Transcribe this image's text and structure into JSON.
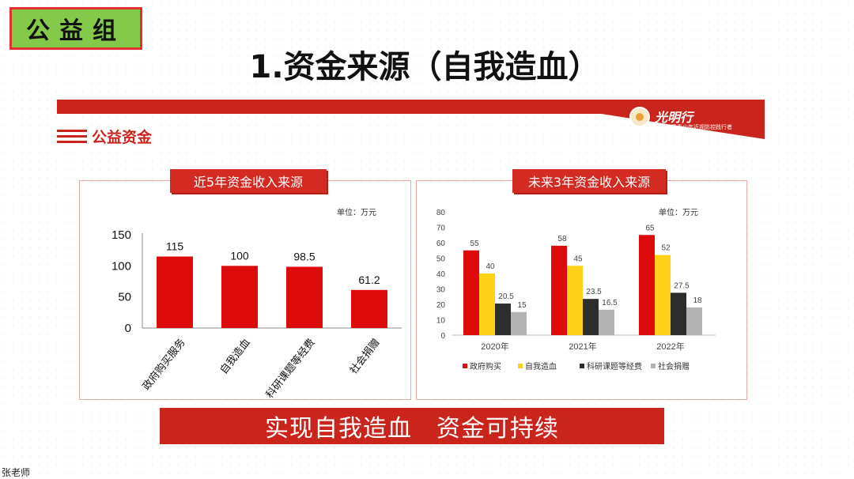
{
  "header": {
    "group_label": "公益组",
    "title": "1.资金来源（自我造血）"
  },
  "logo": {
    "name": "光明行",
    "subtitle": "中国儿童青少年近视防控践行者"
  },
  "section": {
    "label": "公益资金"
  },
  "colors": {
    "brand_red": "#c9251d",
    "bar_red": "#dd0b0b",
    "bar_yellow": "#ffd21a",
    "bar_dark": "#2d2d2d",
    "bar_gray": "#b3b3b3",
    "badge_green": "#84c94a"
  },
  "left_panel": {
    "tab": "近5年资金收入来源",
    "unit": "单位：万元"
  },
  "right_panel": {
    "tab": "未来3年资金收入来源",
    "unit": "单位：万元"
  },
  "chart_data": [
    {
      "type": "bar",
      "title": "近5年资金收入来源",
      "unit": "单位：万元",
      "categories": [
        "政府购买服务",
        "自我造血",
        "科研课题等经费",
        "社会捐赠"
      ],
      "values": [
        115,
        100,
        98.5,
        61.2
      ],
      "data_labels": [
        "115",
        "100",
        "98.5",
        "61.2"
      ],
      "yticks": [
        0,
        50,
        100,
        150
      ],
      "ylim": [
        0,
        150
      ],
      "grid": false
    },
    {
      "type": "bar",
      "title": "未来3年资金收入来源",
      "unit": "单位：万元",
      "categories": [
        "2020年",
        "2021年",
        "2022年"
      ],
      "series": [
        {
          "name": "政府购买",
          "values": [
            55,
            58,
            65
          ],
          "labels": [
            "55",
            "58",
            "65"
          ]
        },
        {
          "name": "自我造血",
          "values": [
            40,
            45,
            52
          ],
          "labels": [
            "40",
            "45",
            "52"
          ]
        },
        {
          "name": "科研课题等经费",
          "values": [
            20.5,
            23.5,
            27.5
          ],
          "labels": [
            "20.5",
            "23.5",
            "27.5"
          ]
        },
        {
          "name": "社会捐赠",
          "values": [
            15,
            16.5,
            18
          ],
          "labels": [
            "15",
            "16.5",
            "18"
          ]
        }
      ],
      "yticks": [
        0,
        10,
        20,
        30,
        40,
        50,
        60,
        70,
        80
      ],
      "ylim": [
        0,
        80
      ],
      "legend": "bottom",
      "grid": false
    }
  ],
  "footer": {
    "slogan": "实现自我造血　资金可持续",
    "presenter": "张老师"
  }
}
